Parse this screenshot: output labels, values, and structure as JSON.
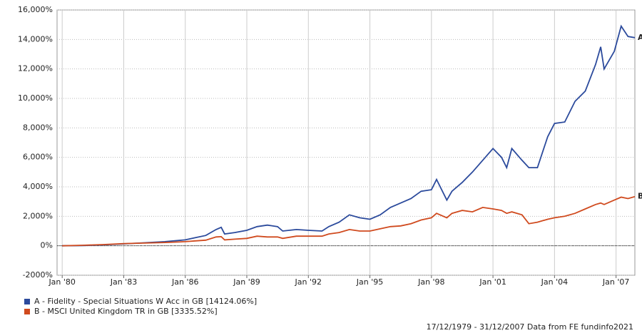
{
  "chart_data": {
    "type": "line",
    "x": [
      "1980-01",
      "1981-01",
      "1982-01",
      "1983-01",
      "1984-01",
      "1985-01",
      "1986-01",
      "1986-07",
      "1987-01",
      "1987-07",
      "1987-10",
      "1987-12",
      "1988-06",
      "1989-01",
      "1989-07",
      "1990-01",
      "1990-07",
      "1990-10",
      "1991-06",
      "1992-01",
      "1992-09",
      "1993-01",
      "1993-07",
      "1994-01",
      "1994-07",
      "1995-01",
      "1995-07",
      "1996-01",
      "1996-07",
      "1997-01",
      "1997-07",
      "1998-01",
      "1998-04",
      "1998-10",
      "1999-01",
      "1999-07",
      "2000-01",
      "2000-07",
      "2001-01",
      "2001-06",
      "2001-09",
      "2001-12",
      "2002-06",
      "2002-10",
      "2003-03",
      "2003-09",
      "2004-01",
      "2004-07",
      "2005-01",
      "2005-07",
      "2006-01",
      "2006-04",
      "2006-06",
      "2006-12",
      "2007-04",
      "2007-08",
      "2007-12"
    ],
    "series": [
      {
        "name": "A - Fidelity - Special Situations W Acc in GB [14124.06%]",
        "end_label": "A",
        "color": "#2b4a9c",
        "values": [
          0,
          20,
          60,
          130,
          200,
          280,
          400,
          550,
          700,
          1100,
          1250,
          800,
          900,
          1050,
          1300,
          1400,
          1300,
          1000,
          1100,
          1050,
          1000,
          1300,
          1600,
          2100,
          1900,
          1800,
          2100,
          2600,
          2900,
          3200,
          3700,
          3800,
          4500,
          3100,
          3700,
          4300,
          5000,
          5800,
          6600,
          6000,
          5300,
          6600,
          5800,
          5300,
          5300,
          7400,
          8300,
          8400,
          9800,
          10500,
          12300,
          13500,
          12000,
          13200,
          14900,
          14200,
          14124.06
        ]
      },
      {
        "name": "B - MSCI United Kingdom TR in GB [3335.52%]",
        "end_label": "B",
        "color": "#d04a1e",
        "values": [
          0,
          30,
          80,
          150,
          180,
          220,
          280,
          330,
          380,
          600,
          620,
          400,
          450,
          500,
          650,
          600,
          600,
          500,
          650,
          650,
          650,
          800,
          900,
          1100,
          1000,
          1000,
          1150,
          1300,
          1350,
          1500,
          1750,
          1900,
          2200,
          1900,
          2200,
          2400,
          2300,
          2600,
          2500,
          2400,
          2200,
          2300,
          2100,
          1500,
          1600,
          1800,
          1900,
          2000,
          2200,
          2500,
          2800,
          2900,
          2800,
          3100,
          3300,
          3200,
          3335.52
        ]
      }
    ],
    "xlim": [
      "1979-10",
      "2007-12"
    ],
    "xticks": [
      {
        "value": "1980-01",
        "label": "Jan '80"
      },
      {
        "value": "1983-01",
        "label": "Jan '83"
      },
      {
        "value": "1986-01",
        "label": "Jan '86"
      },
      {
        "value": "1989-01",
        "label": "Jan '89"
      },
      {
        "value": "1992-01",
        "label": "Jan '92"
      },
      {
        "value": "1995-01",
        "label": "Jan '95"
      },
      {
        "value": "1998-01",
        "label": "Jan '98"
      },
      {
        "value": "2001-01",
        "label": "Jan '01"
      },
      {
        "value": "2004-01",
        "label": "Jan '04"
      },
      {
        "value": "2007-01",
        "label": "Jan '07"
      }
    ],
    "ylim": [
      -2000,
      16000
    ],
    "yticks": [
      {
        "value": -2000,
        "label": "-2000%"
      },
      {
        "value": 0,
        "label": "0%"
      },
      {
        "value": 2000,
        "label": "2,000%"
      },
      {
        "value": 4000,
        "label": "4,000%"
      },
      {
        "value": 6000,
        "label": "6,000%"
      },
      {
        "value": 8000,
        "label": "8,000%"
      },
      {
        "value": 10000,
        "label": "10,000%"
      },
      {
        "value": 12000,
        "label": "12,000%"
      },
      {
        "value": 14000,
        "label": "14,000%"
      },
      {
        "value": 16000,
        "label": "16,000%"
      }
    ],
    "grid": true,
    "footer": "17/12/1979 - 31/12/2007 Data from FE fundinfo2021"
  }
}
